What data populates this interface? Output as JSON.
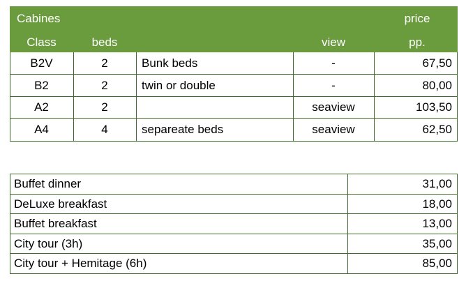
{
  "cabins": {
    "header": {
      "title": "Cabines",
      "price_line1": "price",
      "class": "Class",
      "beds": "beds",
      "view": "view",
      "price_line2": "pp."
    },
    "rows": [
      {
        "class": "B2V",
        "beds": "2",
        "description": "Bunk beds",
        "view": "-",
        "price": "67,50"
      },
      {
        "class": "B2",
        "beds": "2",
        "description": "twin or double",
        "view": "-",
        "price": "80,00"
      },
      {
        "class": "A2",
        "beds": "2",
        "description": "",
        "view": "seaview",
        "price": "103,50"
      },
      {
        "class": "A4",
        "beds": "4",
        "description": "separeate beds",
        "view": "seaview",
        "price": "62,50"
      }
    ]
  },
  "services": {
    "rows": [
      {
        "name": "Buffet dinner",
        "price": "31,00"
      },
      {
        "name": "DeLuxe breakfast",
        "price": "18,00"
      },
      {
        "name": "Buffet breakfast",
        "price": "13,00"
      },
      {
        "name": "City tour (3h)",
        "price": "35,00"
      },
      {
        "name": "City tour + Hemitage (6h)",
        "price": "85,00"
      }
    ]
  },
  "colors": {
    "header_bg": "#6a9b3d",
    "border": "#3f6b2a"
  }
}
